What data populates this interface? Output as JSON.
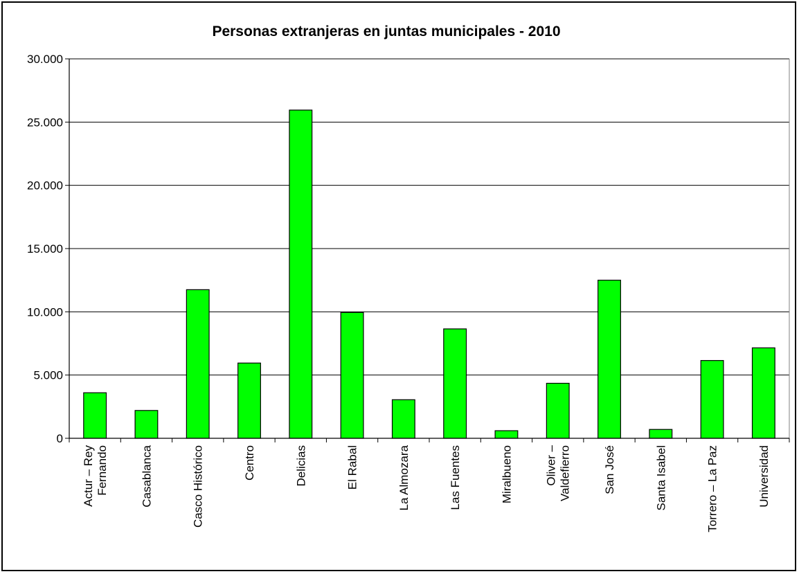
{
  "chart_data": {
    "type": "bar",
    "title": "Personas extranjeras en juntas municipales - 2010",
    "xlabel": "",
    "ylabel": "",
    "categories": [
      [
        "Actur – Rey",
        "Fernando"
      ],
      [
        "Casablanca"
      ],
      [
        "Casco Histórico"
      ],
      [
        "Centro"
      ],
      [
        "Delicias"
      ],
      [
        "El Rabal"
      ],
      [
        "La Almozara"
      ],
      [
        "Las Fuentes"
      ],
      [
        "Miralbueno"
      ],
      [
        "Oliver –",
        "Valdefierro"
      ],
      [
        "San José"
      ],
      [
        "Santa Isabel"
      ],
      [
        "Torrero – La Paz"
      ],
      [
        "Universidad"
      ]
    ],
    "values": [
      3600,
      2200,
      11750,
      5950,
      25950,
      9950,
      3050,
      8650,
      600,
      4350,
      12500,
      700,
      6150,
      7150
    ],
    "ylim": [
      0,
      30000
    ],
    "yticks": [
      0,
      5000,
      10000,
      15000,
      20000,
      25000,
      30000
    ],
    "ytick_labels": [
      "0",
      "5.000",
      "10.000",
      "15.000",
      "20.000",
      "25.000",
      "30.000"
    ],
    "grid": true,
    "legend": "none",
    "bar_color": "#00ff00"
  }
}
